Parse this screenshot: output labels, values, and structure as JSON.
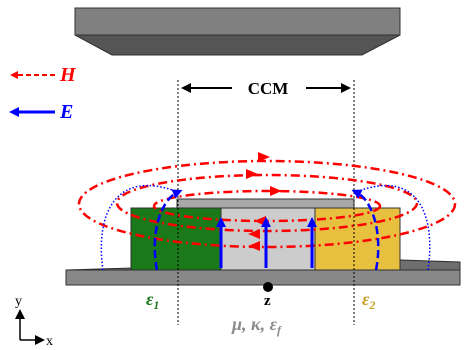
{
  "legend": {
    "h_label": "H",
    "e_label": "E",
    "h_color": "#ff0000",
    "e_color": "#0000ff"
  },
  "ccm": {
    "label": "CCM"
  },
  "regions": {
    "left_label": "ε",
    "left_sub": "1",
    "left_color": "#1a7a1a",
    "right_label": "ε",
    "right_sub": "2",
    "right_color": "#e8c040",
    "center_color": "#cccccc"
  },
  "center_params": {
    "mu": "μ",
    "kappa": "κ",
    "eps": "ε",
    "eps_sub": "f",
    "separator": ", "
  },
  "z_label": "z",
  "axes": {
    "y": "y",
    "x": "x"
  },
  "plate_color": "#707070"
}
